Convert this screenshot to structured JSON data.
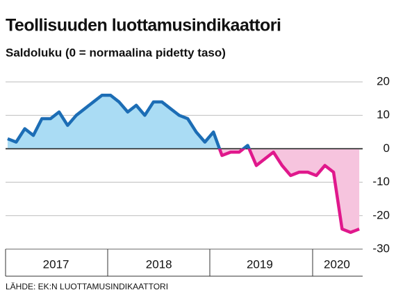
{
  "chart_data": {
    "type": "line",
    "title": "Teollisuuden luottamusindikaattori",
    "subtitle": "Saldoluku (0 = normaalina pidetty taso)",
    "source": "LÄHDE: EK:N LUOTTAMUSINDIKAATTORI",
    "x": [
      2017,
      2017.083,
      2017.167,
      2017.25,
      2017.333,
      2017.417,
      2017.5,
      2017.583,
      2017.667,
      2017.75,
      2017.833,
      2017.917,
      2018,
      2018.083,
      2018.167,
      2018.25,
      2018.333,
      2018.417,
      2018.5,
      2018.583,
      2018.667,
      2018.75,
      2018.833,
      2018.917,
      2019,
      2019.083,
      2019.167,
      2019.25,
      2019.333,
      2019.417,
      2019.5,
      2019.583,
      2019.667,
      2019.75,
      2019.833,
      2019.917,
      2020,
      2020.083,
      2020.167,
      2020.25,
      2020.333,
      2020.417
    ],
    "values": [
      3,
      2,
      6,
      4,
      9,
      9,
      11,
      7,
      10,
      12,
      14,
      16,
      16,
      14,
      11,
      13,
      10,
      14,
      14,
      12,
      10,
      9,
      5,
      2,
      5,
      -2,
      -1,
      -1,
      1,
      -5,
      -3,
      -1,
      -5,
      -8,
      -7,
      -7,
      -8,
      -5,
      -7,
      -24,
      -25,
      -24
    ],
    "color_positive": "#1c6db5",
    "fill_positive": "#aadcf4",
    "color_negative": "#e0188c",
    "fill_negative": "#f6c4de",
    "xlim": [
      2016.98,
      2020.45
    ],
    "xticks": [
      {
        "value": 2017.47,
        "label": "2017"
      },
      {
        "value": 2018.47,
        "label": "2018"
      },
      {
        "value": 2019.45,
        "label": "2019"
      },
      {
        "value": 2020.2,
        "label": "2020"
      }
    ],
    "ylim": [
      -30,
      20
    ],
    "yticks": [
      20,
      10,
      0,
      -10,
      -20,
      -30
    ],
    "grid": true
  }
}
